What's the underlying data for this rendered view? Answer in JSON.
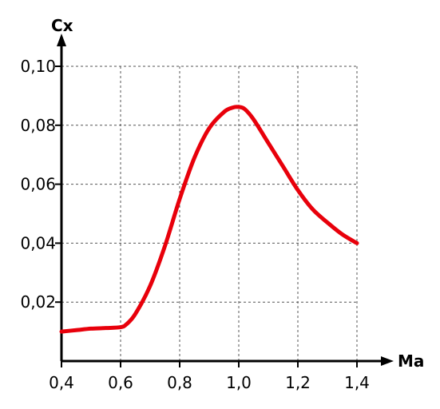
{
  "chart_data": {
    "type": "line",
    "xlabel": "Ma",
    "ylabel": "Cx",
    "xlim": [
      0.4,
      1.4
    ],
    "ylim": [
      0,
      0.1
    ],
    "grid": true,
    "xticks": [
      {
        "value": 0.4,
        "label": "0,4"
      },
      {
        "value": 0.6,
        "label": "0,6"
      },
      {
        "value": 0.8,
        "label": "0,8"
      },
      {
        "value": 1.0,
        "label": "1,0"
      },
      {
        "value": 1.2,
        "label": "1,2"
      },
      {
        "value": 1.4,
        "label": "1,4"
      }
    ],
    "yticks": [
      {
        "value": 0.02,
        "label": "0,02"
      },
      {
        "value": 0.04,
        "label": "0,04"
      },
      {
        "value": 0.06,
        "label": "0,06"
      },
      {
        "value": 0.08,
        "label": "0,08"
      },
      {
        "value": 0.1,
        "label": "0,10"
      }
    ],
    "series": [
      {
        "color": "#e8000b",
        "x": [
          0.4,
          0.45,
          0.5,
          0.55,
          0.6,
          0.62,
          0.65,
          0.7,
          0.75,
          0.8,
          0.85,
          0.9,
          0.95,
          0.98,
          1.0,
          1.02,
          1.05,
          1.1,
          1.15,
          1.2,
          1.25,
          1.3,
          1.35,
          1.4
        ],
        "y": [
          0.01,
          0.0105,
          0.011,
          0.0112,
          0.0115,
          0.0125,
          0.016,
          0.0255,
          0.039,
          0.055,
          0.069,
          0.079,
          0.0845,
          0.086,
          0.0862,
          0.0855,
          0.082,
          0.074,
          0.066,
          0.058,
          0.0515,
          0.047,
          0.043,
          0.04
        ]
      }
    ]
  }
}
